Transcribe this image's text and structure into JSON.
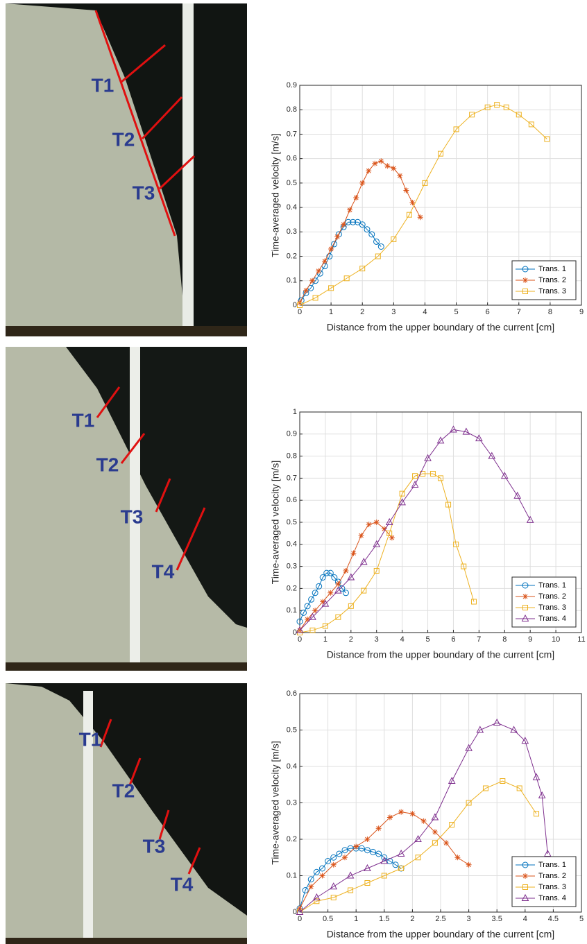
{
  "photos": [
    {
      "labels": [
        "T1",
        "T2",
        "T3"
      ]
    },
    {
      "labels": [
        "T1",
        "T2",
        "T3",
        "T4"
      ]
    },
    {
      "labels": [
        "T1",
        "T2",
        "T3",
        "T4"
      ]
    }
  ],
  "chart_data": [
    {
      "type": "line",
      "ylabel": "Time-averaged velocity [m/s]",
      "xlabel": "Distance from the upper boundary of the current [cm]",
      "xlim": [
        0,
        9
      ],
      "xticks": [
        0,
        1,
        2,
        3,
        4,
        5,
        6,
        7,
        8,
        9
      ],
      "ylim": [
        0,
        0.9
      ],
      "yticks": [
        0,
        0.1,
        0.2,
        0.3,
        0.4,
        0.5,
        0.6,
        0.7,
        0.8,
        0.9
      ],
      "grid": true,
      "legend": "southeast",
      "series": [
        {
          "name": "Trans. 1",
          "color": "#0072BD",
          "marker": "circle",
          "x": [
            0.05,
            0.2,
            0.35,
            0.5,
            0.65,
            0.8,
            0.95,
            1.1,
            1.25,
            1.4,
            1.55,
            1.7,
            1.85,
            2.0,
            2.15,
            2.3,
            2.45,
            2.6
          ],
          "values": [
            0.02,
            0.05,
            0.07,
            0.1,
            0.13,
            0.16,
            0.2,
            0.25,
            0.29,
            0.32,
            0.34,
            0.34,
            0.34,
            0.33,
            0.31,
            0.29,
            0.26,
            0.24
          ]
        },
        {
          "name": "Trans. 2",
          "color": "#D95319",
          "marker": "star",
          "x": [
            0,
            0.2,
            0.4,
            0.6,
            0.8,
            1.0,
            1.2,
            1.4,
            1.6,
            1.8,
            2.0,
            2.2,
            2.4,
            2.6,
            2.8,
            3.0,
            3.2,
            3.4,
            3.6,
            3.85
          ],
          "values": [
            0.01,
            0.06,
            0.1,
            0.14,
            0.18,
            0.23,
            0.28,
            0.33,
            0.39,
            0.44,
            0.5,
            0.55,
            0.58,
            0.59,
            0.57,
            0.56,
            0.53,
            0.47,
            0.42,
            0.36
          ]
        },
        {
          "name": "Trans. 3",
          "color": "#EDB120",
          "marker": "square",
          "x": [
            0,
            0.5,
            1,
            1.5,
            2,
            2.5,
            3,
            3.5,
            4,
            4.5,
            5,
            5.5,
            6,
            6.3,
            6.6,
            7,
            7.4,
            7.9
          ],
          "values": [
            0,
            0.03,
            0.07,
            0.11,
            0.15,
            0.2,
            0.27,
            0.37,
            0.5,
            0.62,
            0.72,
            0.78,
            0.81,
            0.82,
            0.81,
            0.78,
            0.74,
            0.68
          ]
        }
      ]
    },
    {
      "type": "line",
      "ylabel": "Time-averaged velocity [m/s]",
      "xlabel": "Distance from the upper boundary of the current [cm]",
      "xlim": [
        0,
        11
      ],
      "xticks": [
        0,
        1,
        2,
        3,
        4,
        5,
        6,
        7,
        8,
        9,
        10,
        11
      ],
      "ylim": [
        0,
        1
      ],
      "yticks": [
        0,
        0.1,
        0.2,
        0.3,
        0.4,
        0.5,
        0.6,
        0.7,
        0.8,
        0.9,
        1
      ],
      "grid": true,
      "legend": "southeast",
      "series": [
        {
          "name": "Trans. 1",
          "color": "#0072BD",
          "marker": "circle",
          "x": [
            0,
            0.15,
            0.3,
            0.45,
            0.6,
            0.75,
            0.9,
            1.05,
            1.2,
            1.35,
            1.5,
            1.65,
            1.8
          ],
          "values": [
            0.05,
            0.09,
            0.12,
            0.15,
            0.18,
            0.21,
            0.25,
            0.27,
            0.27,
            0.25,
            0.23,
            0.2,
            0.18
          ]
        },
        {
          "name": "Trans. 2",
          "color": "#D95319",
          "marker": "star",
          "x": [
            0,
            0.3,
            0.6,
            0.9,
            1.2,
            1.5,
            1.8,
            2.1,
            2.4,
            2.7,
            3.0,
            3.3,
            3.6
          ],
          "values": [
            0.01,
            0.06,
            0.1,
            0.14,
            0.18,
            0.22,
            0.28,
            0.36,
            0.44,
            0.49,
            0.5,
            0.47,
            0.43
          ]
        },
        {
          "name": "Trans. 3",
          "color": "#EDB120",
          "marker": "square",
          "x": [
            0,
            0.5,
            1,
            1.5,
            2,
            2.5,
            3,
            3.5,
            4,
            4.5,
            4.8,
            5.2,
            5.5,
            5.8,
            6.1,
            6.4,
            6.8
          ],
          "values": [
            0,
            0.01,
            0.03,
            0.07,
            0.12,
            0.19,
            0.28,
            0.45,
            0.63,
            0.71,
            0.72,
            0.72,
            0.7,
            0.58,
            0.4,
            0.3,
            0.14
          ]
        },
        {
          "name": "Trans. 4",
          "color": "#7E2F8E",
          "marker": "triangle",
          "x": [
            0,
            0.5,
            1,
            1.5,
            2,
            2.5,
            3,
            3.5,
            4,
            4.5,
            5,
            5.5,
            6,
            6.5,
            7,
            7.5,
            8,
            8.5,
            9
          ],
          "values": [
            0.01,
            0.07,
            0.13,
            0.19,
            0.25,
            0.32,
            0.4,
            0.5,
            0.59,
            0.67,
            0.79,
            0.87,
            0.92,
            0.91,
            0.88,
            0.8,
            0.71,
            0.62,
            0.51
          ]
        }
      ]
    },
    {
      "type": "line",
      "ylabel": "Time-averaged velocity [m/s]",
      "xlabel": "Distance from the upper boundary of the current [cm]",
      "xlim": [
        0,
        5
      ],
      "xticks": [
        0,
        0.5,
        1,
        1.5,
        2,
        2.5,
        3,
        3.5,
        4,
        4.5,
        5
      ],
      "ylim": [
        0,
        0.6
      ],
      "yticks": [
        0,
        0.1,
        0.2,
        0.3,
        0.4,
        0.5,
        0.6
      ],
      "grid": true,
      "legend": "southeast",
      "series": [
        {
          "name": "Trans. 1",
          "color": "#0072BD",
          "marker": "circle",
          "x": [
            0,
            0.1,
            0.2,
            0.3,
            0.4,
            0.5,
            0.6,
            0.7,
            0.8,
            0.9,
            1,
            1.1,
            1.2,
            1.3,
            1.4,
            1.5,
            1.6,
            1.7,
            1.8
          ],
          "values": [
            0.01,
            0.06,
            0.09,
            0.11,
            0.12,
            0.14,
            0.15,
            0.16,
            0.17,
            0.175,
            0.175,
            0.175,
            0.17,
            0.165,
            0.16,
            0.15,
            0.14,
            0.13,
            0.12
          ]
        },
        {
          "name": "Trans. 2",
          "color": "#D95319",
          "marker": "star",
          "x": [
            0,
            0.2,
            0.4,
            0.6,
            0.8,
            1.0,
            1.2,
            1.4,
            1.6,
            1.8,
            2.0,
            2.2,
            2.4,
            2.6,
            2.8,
            3.0
          ],
          "values": [
            0.01,
            0.07,
            0.1,
            0.13,
            0.15,
            0.18,
            0.2,
            0.23,
            0.26,
            0.275,
            0.27,
            0.25,
            0.22,
            0.19,
            0.15,
            0.13
          ]
        },
        {
          "name": "Trans. 3",
          "color": "#EDB120",
          "marker": "square",
          "x": [
            0,
            0.3,
            0.6,
            0.9,
            1.2,
            1.5,
            1.8,
            2.1,
            2.4,
            2.7,
            3,
            3.3,
            3.6,
            3.9,
            4.2
          ],
          "values": [
            0,
            0.03,
            0.04,
            0.06,
            0.08,
            0.1,
            0.12,
            0.15,
            0.19,
            0.24,
            0.3,
            0.34,
            0.36,
            0.34,
            0.27
          ]
        },
        {
          "name": "Trans. 4",
          "color": "#7E2F8E",
          "marker": "triangle",
          "x": [
            0,
            0.3,
            0.6,
            0.9,
            1.2,
            1.5,
            1.8,
            2.1,
            2.4,
            2.7,
            3,
            3.2,
            3.5,
            3.8,
            4,
            4.2,
            4.3,
            4.4
          ],
          "values": [
            0,
            0.04,
            0.07,
            0.1,
            0.12,
            0.14,
            0.16,
            0.2,
            0.26,
            0.36,
            0.45,
            0.5,
            0.52,
            0.5,
            0.47,
            0.37,
            0.32,
            0.16
          ]
        }
      ]
    }
  ]
}
